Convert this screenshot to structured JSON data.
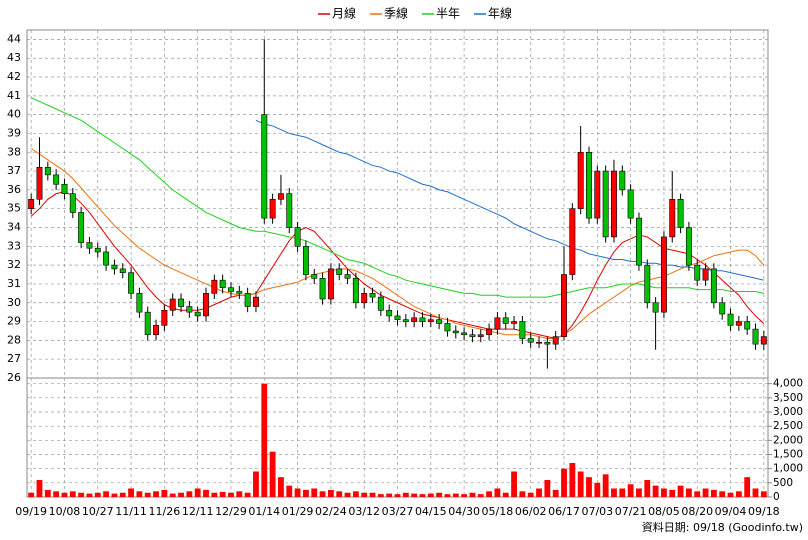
{
  "chart_data": {
    "type": "candlestick",
    "categories": [
      "09/19",
      null,
      null,
      null,
      "10/08",
      null,
      null,
      null,
      "10/27",
      null,
      null,
      null,
      "11/11",
      null,
      null,
      null,
      "11/26",
      null,
      null,
      null,
      "12/11",
      null,
      null,
      null,
      "12/29",
      null,
      null,
      null,
      "01/14",
      null,
      null,
      null,
      "01/29",
      null,
      null,
      null,
      "02/24",
      null,
      null,
      null,
      "03/12",
      null,
      null,
      null,
      "03/27",
      null,
      null,
      null,
      "04/15",
      null,
      null,
      null,
      "04/30",
      null,
      null,
      null,
      "05/18",
      null,
      null,
      null,
      "06/02",
      null,
      null,
      null,
      "06/17",
      null,
      null,
      null,
      "07/03",
      null,
      null,
      null,
      "07/21",
      null,
      null,
      null,
      "08/05",
      null,
      null,
      null,
      "08/20",
      null,
      null,
      null,
      "09/04",
      null,
      null,
      null,
      "09/18"
    ],
    "open": [
      35.0,
      35.5,
      37.2,
      36.8,
      36.3,
      35.8,
      34.8,
      33.2,
      32.9,
      32.7,
      32.0,
      31.8,
      31.6,
      30.5,
      29.5,
      28.3,
      28.8,
      29.6,
      30.2,
      29.8,
      29.5,
      29.3,
      30.5,
      31.2,
      30.8,
      30.6,
      30.5,
      29.8,
      40.0,
      34.5,
      35.5,
      35.8,
      34.0,
      33.0,
      31.5,
      31.3,
      30.2,
      31.8,
      31.5,
      31.3,
      30.0,
      30.5,
      30.3,
      29.6,
      29.3,
      29.1,
      29.0,
      29.2,
      29.0,
      29.1,
      28.9,
      28.5,
      28.4,
      28.3,
      28.2,
      28.3,
      28.6,
      29.2,
      28.9,
      29.0,
      28.1,
      27.9,
      27.9,
      27.8,
      28.2,
      31.5,
      35.0,
      38.0,
      34.5,
      37.0,
      33.5,
      37.0,
      36.0,
      34.5,
      32.0,
      30.0,
      29.5,
      33.5,
      35.5,
      34.0,
      32.0,
      31.2,
      31.8,
      30.0,
      29.4,
      28.8,
      29.0,
      28.6,
      27.8
    ],
    "high": [
      35.8,
      38.8,
      37.5,
      37.1,
      36.6,
      36.1,
      35.1,
      33.5,
      33.2,
      33.0,
      32.3,
      32.1,
      31.9,
      30.8,
      29.8,
      29.1,
      29.9,
      30.5,
      30.5,
      30.1,
      29.8,
      30.8,
      31.5,
      31.5,
      31.1,
      30.9,
      30.8,
      30.6,
      44.0,
      35.8,
      36.8,
      36.1,
      34.3,
      33.3,
      31.8,
      31.6,
      32.1,
      32.1,
      31.8,
      31.6,
      30.8,
      30.8,
      30.6,
      29.9,
      29.6,
      29.4,
      29.5,
      29.5,
      29.4,
      29.4,
      29.2,
      28.8,
      28.7,
      28.6,
      28.6,
      28.9,
      29.5,
      29.5,
      29.3,
      29.3,
      28.4,
      28.2,
      28.2,
      28.5,
      33.0,
      35.3,
      39.4,
      38.3,
      37.3,
      37.3,
      37.6,
      37.3,
      36.3,
      34.8,
      32.3,
      30.3,
      33.8,
      37.0,
      35.8,
      34.3,
      32.3,
      32.1,
      32.1,
      30.3,
      29.7,
      29.3,
      29.3,
      28.9,
      28.5
    ],
    "low": [
      34.7,
      35.2,
      36.5,
      36.0,
      35.5,
      34.5,
      32.9,
      32.6,
      32.4,
      31.7,
      31.5,
      31.3,
      30.2,
      29.2,
      28.0,
      28.0,
      28.5,
      29.3,
      29.5,
      29.2,
      29.0,
      29.0,
      30.2,
      30.5,
      30.3,
      30.2,
      29.5,
      29.5,
      34.2,
      34.2,
      35.2,
      33.7,
      32.7,
      31.2,
      31.0,
      29.9,
      29.9,
      31.2,
      31.0,
      29.7,
      29.7,
      30.0,
      29.3,
      29.0,
      28.8,
      28.7,
      28.7,
      28.7,
      28.7,
      28.6,
      28.2,
      28.1,
      28.0,
      27.9,
      27.9,
      28.0,
      28.3,
      28.6,
      28.6,
      27.8,
      27.6,
      27.6,
      26.5,
      27.5,
      28.0,
      31.2,
      34.7,
      34.2,
      34.2,
      33.2,
      33.2,
      35.7,
      34.2,
      31.7,
      29.7,
      27.5,
      29.2,
      33.2,
      33.7,
      31.7,
      30.9,
      30.9,
      29.7,
      29.1,
      28.5,
      28.5,
      28.3,
      27.5,
      27.5
    ],
    "close": [
      35.5,
      37.2,
      36.8,
      36.3,
      35.8,
      34.8,
      33.2,
      32.9,
      32.7,
      32.0,
      31.8,
      31.6,
      30.5,
      29.5,
      28.3,
      28.8,
      29.6,
      30.2,
      29.8,
      29.5,
      29.3,
      30.5,
      31.2,
      30.8,
      30.6,
      30.5,
      29.8,
      30.3,
      34.5,
      35.5,
      35.8,
      34.0,
      33.0,
      31.5,
      31.3,
      30.2,
      31.8,
      31.5,
      31.3,
      30.0,
      30.5,
      30.3,
      29.6,
      29.3,
      29.1,
      29.0,
      29.2,
      29.0,
      29.1,
      28.9,
      28.5,
      28.4,
      28.3,
      28.2,
      28.3,
      28.6,
      29.2,
      28.9,
      29.0,
      28.1,
      27.9,
      27.9,
      27.8,
      28.2,
      31.5,
      35.0,
      38.0,
      34.5,
      37.0,
      33.5,
      37.0,
      36.0,
      34.5,
      32.0,
      30.0,
      29.5,
      33.5,
      35.5,
      34.0,
      32.0,
      31.2,
      31.8,
      30.0,
      29.4,
      28.8,
      29.0,
      28.6,
      27.8,
      28.2
    ],
    "up_color": "#ff0000",
    "down_color": "#00c000",
    "volume": {
      "axis": "y2",
      "color": "#ff0000",
      "values": [
        150,
        600,
        250,
        200,
        150,
        200,
        150,
        120,
        150,
        200,
        120,
        150,
        300,
        200,
        150,
        200,
        250,
        120,
        150,
        200,
        300,
        250,
        150,
        180,
        150,
        200,
        150,
        900,
        4000,
        1600,
        700,
        400,
        300,
        250,
        300,
        200,
        250,
        200,
        150,
        200,
        150,
        150,
        100,
        120,
        100,
        150,
        120,
        100,
        120,
        150,
        100,
        120,
        100,
        150,
        100,
        200,
        300,
        150,
        900,
        200,
        150,
        300,
        600,
        250,
        1000,
        1200,
        900,
        700,
        500,
        800,
        300,
        300,
        450,
        300,
        600,
        400,
        300,
        250,
        400,
        300,
        200,
        300,
        250,
        200,
        150,
        200,
        700,
        300,
        200
      ]
    },
    "series": [
      {
        "name": "月線",
        "color": "#e00000",
        "values": [
          34.6,
          35.0,
          35.5,
          35.8,
          35.9,
          35.7,
          35.3,
          34.8,
          34.2,
          33.6,
          33.0,
          32.5,
          32.0,
          31.4,
          30.8,
          30.3,
          29.9,
          29.7,
          29.6,
          29.6,
          29.6,
          29.7,
          29.9,
          30.1,
          30.3,
          30.4,
          30.4,
          30.5,
          31.2,
          31.9,
          32.6,
          33.3,
          33.8,
          34.0,
          33.8,
          33.3,
          32.8,
          32.3,
          31.8,
          31.4,
          31.0,
          30.7,
          30.4,
          30.2,
          30.0,
          29.8,
          29.6,
          29.4,
          29.3,
          29.2,
          29.1,
          29.0,
          28.9,
          28.8,
          28.7,
          28.6,
          28.6,
          28.6,
          28.6,
          28.5,
          28.4,
          28.3,
          28.2,
          28.1,
          28.3,
          28.8,
          29.5,
          30.3,
          31.2,
          32.0,
          32.7,
          33.2,
          33.4,
          33.6,
          33.5,
          33.2,
          32.9,
          32.8,
          32.7,
          32.6,
          32.3,
          32.0,
          31.6,
          31.2,
          30.8,
          30.4,
          29.8,
          29.3,
          28.9
        ]
      },
      {
        "name": "季線",
        "color": "#f07010",
        "values": [
          38.2,
          37.9,
          37.6,
          37.3,
          37.0,
          36.6,
          36.1,
          35.6,
          35.1,
          34.6,
          34.1,
          33.7,
          33.3,
          32.9,
          32.6,
          32.3,
          32.0,
          31.8,
          31.6,
          31.4,
          31.2,
          31.0,
          30.8,
          30.6,
          30.5,
          30.4,
          30.4,
          30.5,
          30.7,
          30.8,
          30.9,
          31.0,
          31.1,
          31.3,
          31.5,
          31.6,
          31.7,
          31.8,
          31.8,
          31.7,
          31.5,
          31.3,
          31.0,
          30.7,
          30.4,
          30.1,
          29.8,
          29.6,
          29.4,
          29.2,
          29.1,
          28.9,
          28.8,
          28.7,
          28.6,
          28.5,
          28.4,
          28.3,
          28.3,
          28.3,
          28.3,
          28.2,
          28.1,
          28.1,
          28.3,
          28.6,
          29.0,
          29.4,
          29.7,
          30.0,
          30.3,
          30.6,
          30.9,
          31.1,
          31.2,
          31.3,
          31.4,
          31.6,
          31.8,
          32.0,
          32.1,
          32.3,
          32.5,
          32.6,
          32.7,
          32.8,
          32.8,
          32.5,
          32.0
        ]
      },
      {
        "name": "半年",
        "color": "#20d020",
        "values": [
          40.9,
          40.7,
          40.5,
          40.3,
          40.1,
          39.9,
          39.7,
          39.4,
          39.1,
          38.8,
          38.5,
          38.2,
          37.9,
          37.6,
          37.2,
          36.8,
          36.4,
          36.0,
          35.7,
          35.4,
          35.1,
          34.8,
          34.6,
          34.4,
          34.2,
          34.0,
          33.9,
          33.8,
          33.8,
          33.7,
          33.6,
          33.5,
          33.4,
          33.3,
          33.1,
          32.9,
          32.7,
          32.5,
          32.3,
          32.2,
          32.1,
          31.9,
          31.7,
          31.5,
          31.4,
          31.2,
          31.1,
          31.0,
          30.9,
          30.8,
          30.7,
          30.6,
          30.5,
          30.5,
          30.4,
          30.4,
          30.4,
          30.3,
          30.3,
          30.3,
          30.3,
          30.3,
          30.3,
          30.4,
          30.5,
          30.6,
          30.7,
          30.8,
          30.8,
          30.8,
          30.9,
          31.0,
          31.0,
          31.0,
          30.9,
          30.8,
          30.8,
          30.8,
          30.8,
          30.8,
          30.7,
          30.7,
          30.7,
          30.7,
          30.6,
          30.6,
          30.6,
          30.6,
          30.5
        ]
      },
      {
        "name": "年線",
        "color": "#2070d0",
        "values": [
          null,
          null,
          null,
          null,
          null,
          null,
          null,
          null,
          null,
          null,
          null,
          null,
          null,
          null,
          null,
          null,
          null,
          null,
          null,
          null,
          null,
          null,
          null,
          null,
          null,
          null,
          null,
          39.7,
          39.5,
          39.4,
          39.2,
          39.0,
          38.9,
          38.8,
          38.6,
          38.4,
          38.2,
          38.0,
          37.9,
          37.7,
          37.5,
          37.3,
          37.2,
          37.0,
          36.9,
          36.7,
          36.5,
          36.3,
          36.2,
          36.0,
          35.9,
          35.7,
          35.5,
          35.3,
          35.1,
          34.9,
          34.7,
          34.5,
          34.2,
          34.0,
          33.8,
          33.6,
          33.4,
          33.3,
          33.1,
          32.9,
          32.8,
          32.6,
          32.5,
          32.4,
          32.3,
          32.3,
          32.2,
          32.2,
          32.1,
          32.1,
          32.0,
          32.0,
          31.9,
          31.9,
          31.8,
          31.8,
          31.7,
          31.7,
          31.6,
          31.5,
          31.4,
          31.3,
          31.2
        ]
      }
    ],
    "ylim": [
      26,
      44.5
    ],
    "yticks": [
      26,
      27,
      28,
      29,
      30,
      31,
      32,
      33,
      34,
      35,
      36,
      37,
      38,
      39,
      40,
      41,
      42,
      43,
      44
    ],
    "y2lim": [
      0,
      4200
    ],
    "y2ticks": [
      0,
      500,
      {
        "value": 1000,
        "label": "1,000"
      },
      {
        "value": 1500,
        "label": "1,500"
      },
      {
        "value": 2000,
        "label": "2,000"
      },
      {
        "value": 2500,
        "label": "2,500"
      },
      {
        "value": 3000,
        "label": "3,000"
      },
      {
        "value": 3500,
        "label": "3,500"
      },
      {
        "value": 4000,
        "label": "4,000"
      }
    ],
    "grid": true,
    "legend": "top",
    "footnote": "資料日期: 09/18 (Goodinfo.tw)"
  }
}
